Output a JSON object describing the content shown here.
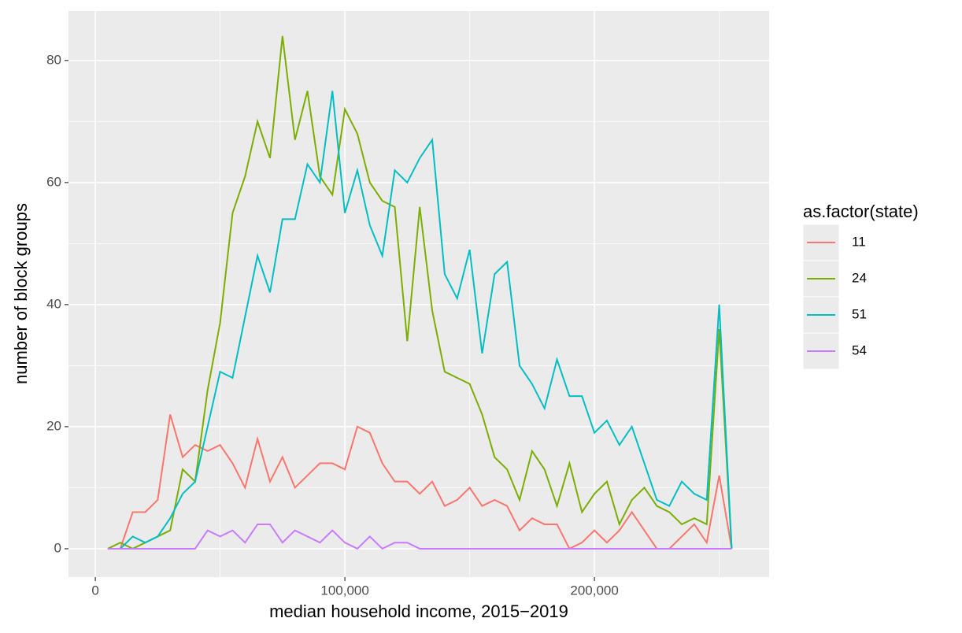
{
  "chart_data": {
    "type": "line",
    "x_label": "median household income, 2015−2019",
    "y_label": "number of block groups",
    "legend_title": "as.factor(state)",
    "x": [
      5000,
      10000,
      15000,
      20000,
      25000,
      30000,
      35000,
      40000,
      45000,
      50000,
      55000,
      60000,
      65000,
      70000,
      75000,
      80000,
      85000,
      90000,
      95000,
      100000,
      105000,
      110000,
      115000,
      120000,
      125000,
      130000,
      135000,
      140000,
      145000,
      150000,
      155000,
      160000,
      165000,
      170000,
      175000,
      180000,
      185000,
      190000,
      195000,
      200000,
      205000,
      210000,
      215000,
      220000,
      225000,
      230000,
      235000,
      240000,
      245000,
      250000,
      255000
    ],
    "series": [
      {
        "name": "11",
        "color": "#f8766d",
        "values": [
          0,
          0,
          6,
          6,
          8,
          22,
          15,
          17,
          16,
          17,
          14,
          10,
          18,
          11,
          15,
          10,
          12,
          14,
          14,
          13,
          20,
          19,
          14,
          11,
          11,
          9,
          11,
          7,
          8,
          10,
          7,
          8,
          7,
          3,
          5,
          4,
          4,
          0,
          1,
          3,
          1,
          3,
          6,
          3,
          0,
          0,
          2,
          4,
          1,
          12,
          0
        ]
      },
      {
        "name": "24",
        "color": "#7cae00",
        "values": [
          0,
          1,
          0,
          1,
          2,
          3,
          13,
          11,
          26,
          37,
          55,
          61,
          70,
          64,
          84,
          67,
          75,
          61,
          58,
          72,
          68,
          60,
          57,
          56,
          34,
          56,
          39,
          29,
          28,
          27,
          22,
          15,
          13,
          8,
          16,
          13,
          7,
          14,
          6,
          9,
          11,
          4,
          8,
          10,
          7,
          6,
          4,
          5,
          4,
          36,
          0
        ]
      },
      {
        "name": "51",
        "color": "#00bfc4",
        "values": [
          0,
          0,
          2,
          1,
          2,
          5,
          9,
          11,
          20,
          29,
          28,
          38,
          48,
          42,
          54,
          54,
          63,
          60,
          75,
          55,
          62,
          53,
          48,
          62,
          60,
          64,
          67,
          45,
          41,
          49,
          32,
          45,
          47,
          30,
          27,
          23,
          31,
          25,
          25,
          19,
          21,
          17,
          20,
          14,
          8,
          7,
          11,
          9,
          8,
          40,
          0
        ]
      },
      {
        "name": "54",
        "color": "#c77cff",
        "values": [
          0,
          0,
          0,
          0,
          0,
          0,
          0,
          0,
          3,
          2,
          3,
          1,
          4,
          4,
          1,
          3,
          2,
          1,
          3,
          1,
          0,
          2,
          0,
          1,
          1,
          0,
          0,
          0,
          0,
          0,
          0,
          0,
          0,
          0,
          0,
          0,
          0,
          0,
          0,
          0,
          0,
          0,
          0,
          0,
          0,
          0,
          0,
          0,
          0,
          0,
          0
        ]
      }
    ],
    "xlim": [
      -10750,
      270000
    ],
    "ylim": [
      -4.65,
      88.1
    ],
    "xticks": [
      0,
      {
        "value": 100000,
        "label": "100,000"
      },
      {
        "value": 200000,
        "label": "200,000"
      }
    ],
    "yticks": [
      0,
      20,
      40,
      60,
      80
    ],
    "grid": true
  }
}
